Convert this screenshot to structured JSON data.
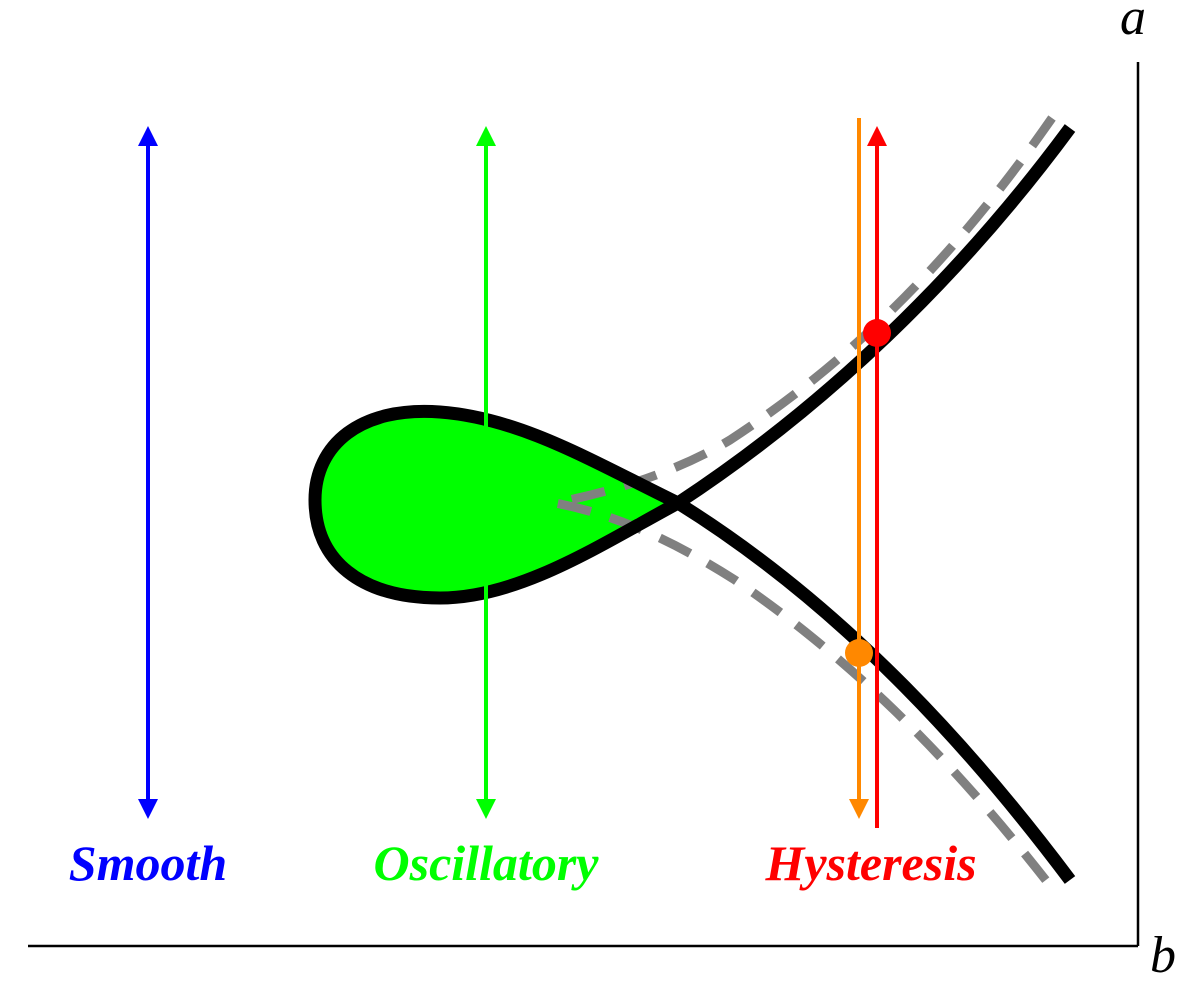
{
  "axes": {
    "vertical_label": "a",
    "horizontal_label": "b",
    "axis_color": "#000000"
  },
  "regimes": [
    {
      "key": "smooth",
      "label": "Smooth",
      "color": "#0000ff"
    },
    {
      "key": "oscillatory",
      "label": "Oscillatory",
      "color": "#00ff00"
    },
    {
      "key": "hysteresis",
      "label": "Hysteresis",
      "color": "#ff0000"
    }
  ],
  "colors": {
    "bifurcation_curve": "#000000",
    "dashed_curve": "#808080",
    "loop_fill": "#00ff00",
    "hysteresis_down": "#ff8800",
    "hysteresis_up": "#ff0000"
  }
}
